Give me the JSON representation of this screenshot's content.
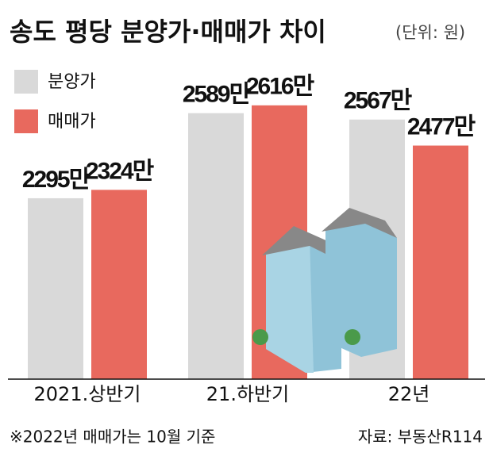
{
  "chart_data": {
    "type": "bar",
    "title": "송도 평당 분양가·매매가 차이",
    "subtitle": "(단위: 원)",
    "categories": [
      "2021.상반기",
      "21.하반기",
      "22년"
    ],
    "series": [
      {
        "name": "분양가",
        "color": "#d9d9d9",
        "values": [
          2295,
          2589,
          2567
        ],
        "value_labels": [
          "2295만",
          "2589만",
          "2567만"
        ]
      },
      {
        "name": "매매가",
        "color": "#e8695e",
        "values": [
          2324,
          2616,
          2477
        ],
        "value_labels": [
          "2324만",
          "2616만",
          "2477만"
        ]
      }
    ],
    "ylim": [
      1670,
      2980
    ],
    "footnote": "※2022년 매매가는 10월 기준",
    "source": "자료: 부동산R114"
  }
}
